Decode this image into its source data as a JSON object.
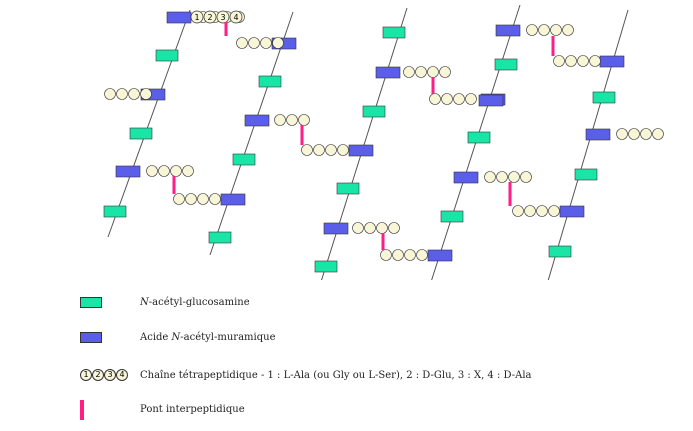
{
  "chain_label_numbers": [
    "1",
    "2",
    "3",
    "4"
  ],
  "colors": {
    "nag": "#19e6a6",
    "nam": "#5a5ee8",
    "peptide": "#f9f6d8",
    "bridge": "#ff1e86",
    "line": "#555555"
  },
  "legend": {
    "nag_prefix": "N",
    "nag_rest": "-acétyl-glucosamine",
    "nam_pre": "Acide ",
    "nam_italic": "N",
    "nam_rest": "-acétyl-muramique",
    "chain_text": "Chaîne tétrapeptidique - 1 : L-Ala (ou Gly ou L-Ser), 2 : D-Glu, 3 : X, 4 : D-Ala",
    "bridge_text": "Pont interpeptidique"
  }
}
